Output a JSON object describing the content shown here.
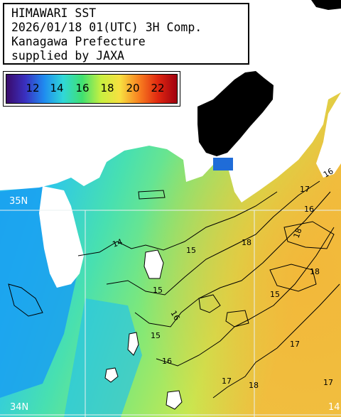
{
  "header": {
    "line1": "HIMAWARI SST",
    "line2": "2026/01/18 01(UTC) 3H Comp.",
    "line3": "Kanagawa Prefecture",
    "line4": "supplied by JAXA"
  },
  "legend": {
    "ticks": [
      "12",
      "14",
      "16",
      "18",
      "20",
      "22"
    ],
    "colors": [
      "#3a0a6a",
      "#3a30c0",
      "#1f8cf0",
      "#30d8d8",
      "#40e070",
      "#c8f040",
      "#f8e040",
      "#f88020",
      "#e02810",
      "#a00010"
    ]
  },
  "map": {
    "lat_labels": [
      "35N",
      "34N"
    ],
    "lon_label": "14",
    "contour_labels": [
      "14",
      "15",
      "15",
      "15",
      "15",
      "16",
      "16",
      "16",
      "16",
      "17",
      "17",
      "17",
      "17",
      "18",
      "18",
      "18",
      "18"
    ],
    "colors": {
      "land": "#ffffff",
      "cloud": "#000000",
      "sea_cold": "#1aa6f0",
      "sea_mid": "#3ee0c0",
      "sea_warm": "#8fe86a",
      "sea_hot": "#f2c040"
    }
  }
}
